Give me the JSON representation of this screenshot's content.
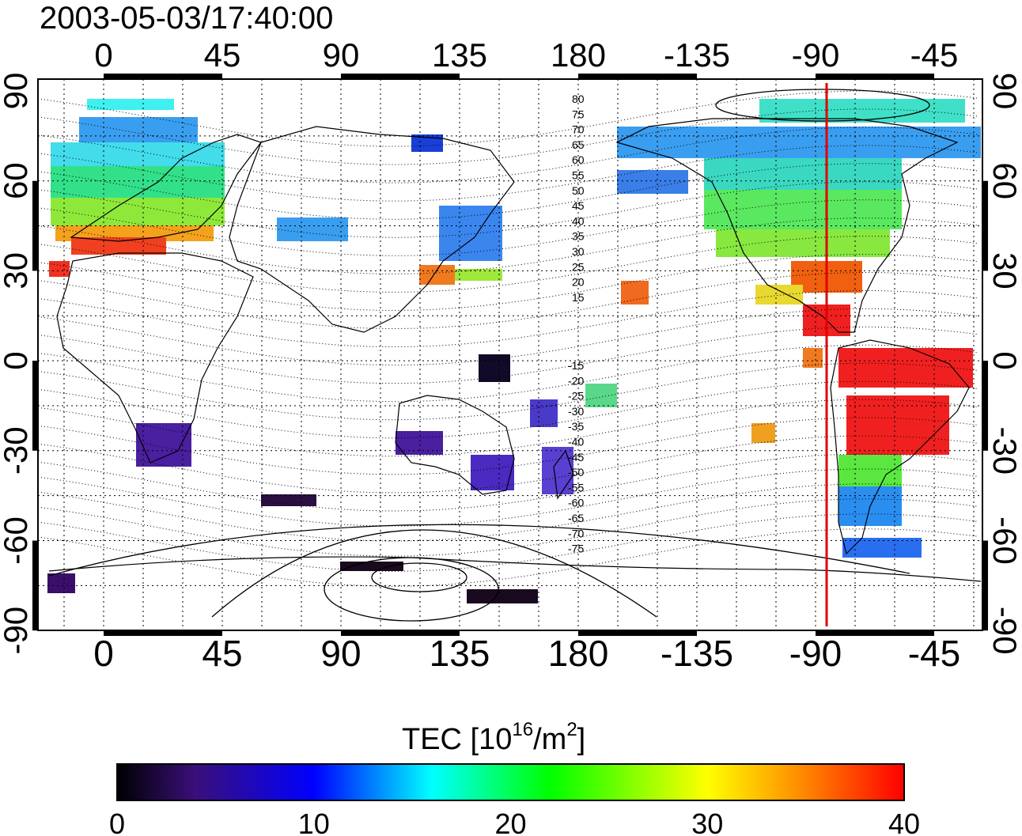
{
  "title": "2003-05-03/17:40:00",
  "map": {
    "top_ticks": [
      "0",
      "45",
      "90",
      "135",
      "180",
      "-135",
      "-90",
      "-45"
    ],
    "bottom_ticks": [
      "0",
      "45",
      "90",
      "135",
      "180",
      "-135",
      "-90",
      "-45"
    ],
    "left_ticks": [
      "90",
      "60",
      "30",
      "0",
      "-30",
      "-60",
      "-90"
    ],
    "right_ticks": [
      "90",
      "60",
      "30",
      "0",
      "-30",
      "-60",
      "-90"
    ],
    "marker_line_color": "#e00000",
    "north_contour_labels": [
      "80",
      "75",
      "70",
      "65",
      "60",
      "55",
      "50",
      "45",
      "40",
      "35",
      "30",
      "25",
      "20",
      "15"
    ],
    "south_contour_labels": [
      "-15",
      "-20",
      "-25",
      "-30",
      "-35",
      "-40",
      "-45",
      "-50",
      "-55",
      "-60",
      "-65",
      "-70",
      "-75"
    ]
  },
  "colorbar": {
    "title_main": "TEC  [10",
    "title_sup1": "16",
    "title_mid": "/m",
    "title_sup2": "2",
    "title_end": "]",
    "tick_labels": [
      "0",
      "10",
      "20",
      "30",
      "40"
    ],
    "colors": [
      "#000000",
      "#3a0f7a",
      "#0000ff",
      "#00ffff",
      "#00ff00",
      "#ffff00",
      "#ff8000",
      "#ff0000"
    ]
  }
}
